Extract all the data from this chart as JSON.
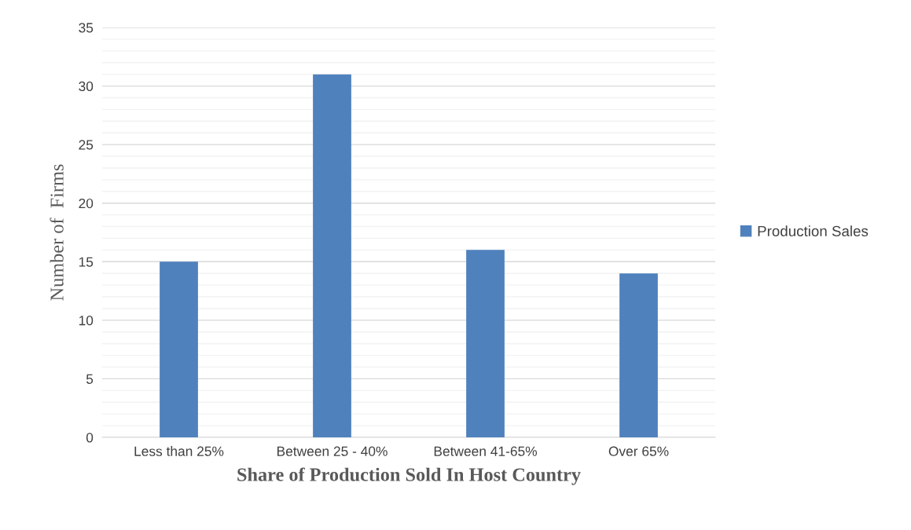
{
  "chart_data": {
    "type": "bar",
    "xlabel": "Share of Production Sold In Host Country",
    "ylabel": "Number of  Firms",
    "categories": [
      "Less than 25%",
      "Between 25 - 40%",
      "Between 41-65%",
      "Over 65%"
    ],
    "series": [
      {
        "name": "Production Sales",
        "color": "#4f81bd",
        "values": [
          15,
          31,
          16,
          14
        ]
      }
    ],
    "ylim": [
      0,
      35
    ],
    "yticks": [
      0,
      {
        "value": 1,
        "label": null
      },
      {
        "value": 2,
        "label": null
      },
      {
        "value": 3,
        "label": null
      },
      {
        "value": 4,
        "label": null
      },
      5,
      {
        "value": 6,
        "label": null
      },
      {
        "value": 7,
        "label": null
      },
      {
        "value": 8,
        "label": null
      },
      {
        "value": 9,
        "label": null
      },
      10,
      {
        "value": 11,
        "label": null
      },
      {
        "value": 12,
        "label": null
      },
      {
        "value": 13,
        "label": null
      },
      {
        "value": 14,
        "label": null
      },
      15,
      {
        "value": 16,
        "label": null
      },
      {
        "value": 17,
        "label": null
      },
      {
        "value": 18,
        "label": null
      },
      {
        "value": 19,
        "label": null
      },
      20,
      {
        "value": 21,
        "label": null
      },
      {
        "value": 22,
        "label": null
      },
      {
        "value": 23,
        "label": null
      },
      {
        "value": 24,
        "label": null
      },
      25,
      {
        "value": 26,
        "label": null
      },
      {
        "value": 27,
        "label": null
      },
      {
        "value": 28,
        "label": null
      },
      {
        "value": 29,
        "label": null
      },
      30,
      {
        "value": 31,
        "label": null
      },
      {
        "value": 32,
        "label": null
      },
      {
        "value": 33,
        "label": null
      },
      {
        "value": 34,
        "label": null
      },
      35
    ],
    "grid": "y",
    "legend": "right"
  }
}
